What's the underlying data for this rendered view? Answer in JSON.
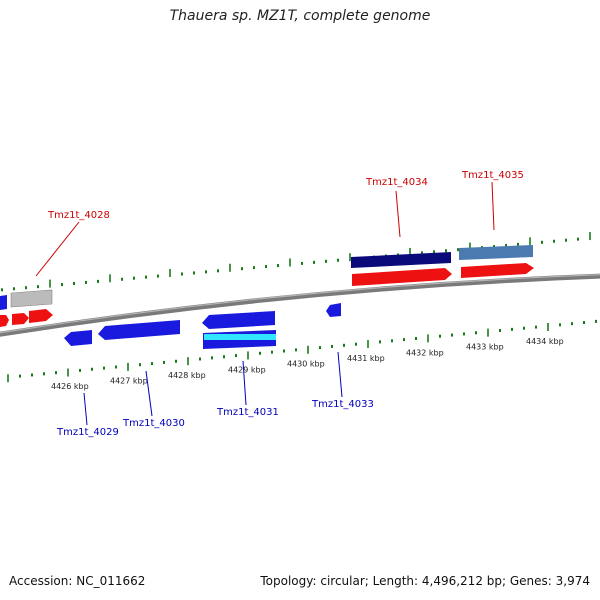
{
  "title": "Thauera sp. MZ1T, complete genome",
  "footer": {
    "accession": "Accession: NC_011662",
    "summary": "Topology: circular; Length: 4,496,212 bp; Genes: 3,974"
  },
  "colors": {
    "forward_label": "#cc0000",
    "reverse_label": "#0000bb",
    "tick": "#1a7a1a",
    "backbone": "#888888"
  },
  "scale_labels": [
    "4426 kbp",
    "4427 kbp",
    "4428 kbp",
    "4429 kbp",
    "4430 kbp",
    "4431 kbp",
    "4432 kbp",
    "4433 kbp",
    "4434 kbp"
  ],
  "gene_labels": [
    {
      "name": "Tmz1t_4028",
      "strand": "forward"
    },
    {
      "name": "Tmz1t_4034",
      "strand": "forward"
    },
    {
      "name": "Tmz1t_4035",
      "strand": "forward"
    },
    {
      "name": "Tmz1t_4029",
      "strand": "reverse"
    },
    {
      "name": "Tmz1t_4030",
      "strand": "reverse"
    },
    {
      "name": "Tmz1t_4031",
      "strand": "reverse"
    },
    {
      "name": "Tmz1t_4033",
      "strand": "reverse"
    }
  ]
}
